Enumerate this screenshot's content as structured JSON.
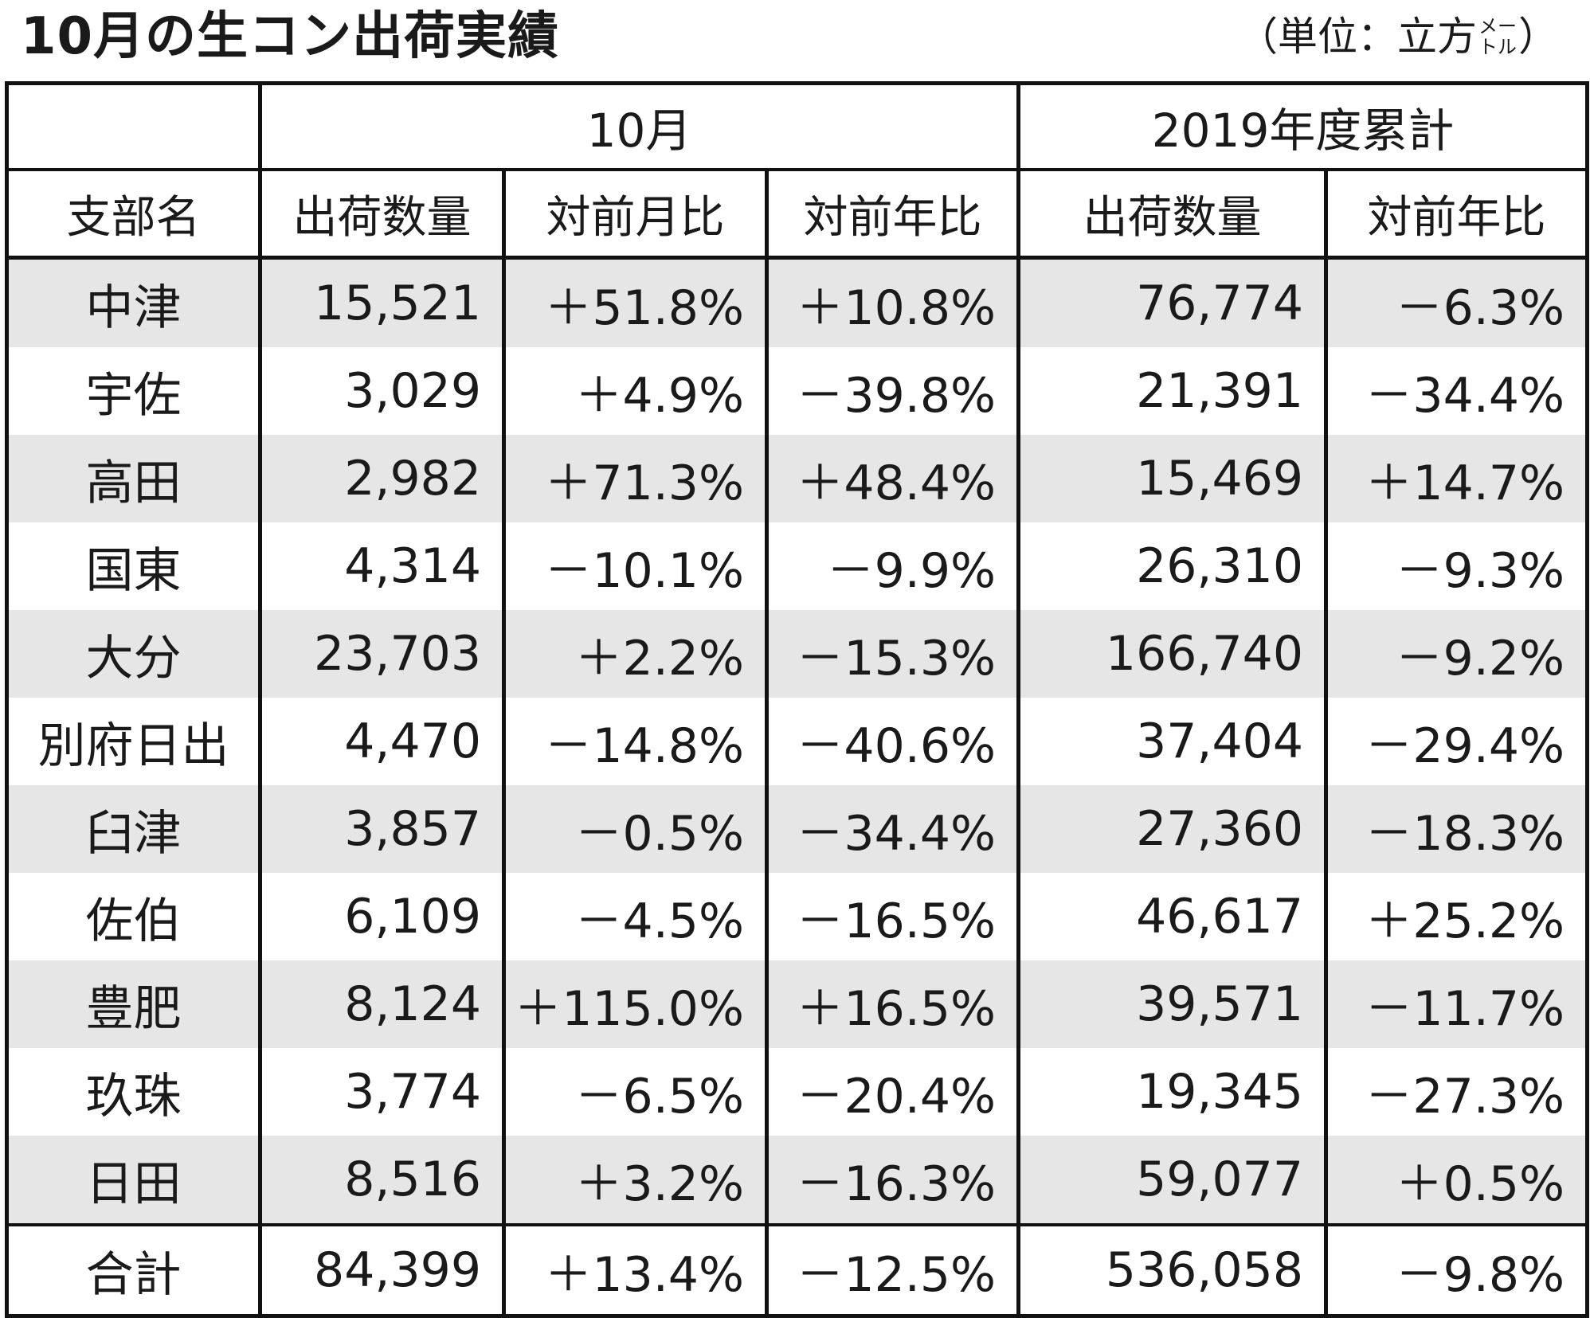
{
  "title": "10月の生コン出荷実績",
  "unit": {
    "prefix": "（単位：立方",
    "meter_top": "メー",
    "meter_bottom": "トル",
    "suffix": "）"
  },
  "table": {
    "group_headers": {
      "blank": "",
      "month": "10月",
      "cumulative": "2019年度累計"
    },
    "columns": [
      "支部名",
      "出荷数量",
      "対前月比",
      "対前年比",
      "出荷数量",
      "対前年比"
    ],
    "rows": [
      [
        "中津",
        "15,521",
        "＋51.8%",
        "＋10.8%",
        "76,774",
        "－6.3%"
      ],
      [
        "宇佐",
        "3,029",
        "＋4.9%",
        "－39.8%",
        "21,391",
        "－34.4%"
      ],
      [
        "高田",
        "2,982",
        "＋71.3%",
        "＋48.4%",
        "15,469",
        "＋14.7%"
      ],
      [
        "国東",
        "4,314",
        "－10.1%",
        "－9.9%",
        "26,310",
        "－9.3%"
      ],
      [
        "大分",
        "23,703",
        "＋2.2%",
        "－15.3%",
        "166,740",
        "－9.2%"
      ],
      [
        "別府日出",
        "4,470",
        "－14.8%",
        "－40.6%",
        "37,404",
        "－29.4%"
      ],
      [
        "臼津",
        "3,857",
        "－0.5%",
        "－34.4%",
        "27,360",
        "－18.3%"
      ],
      [
        "佐伯",
        "6,109",
        "－4.5%",
        "－16.5%",
        "46,617",
        "＋25.2%"
      ],
      [
        "豊肥",
        "8,124",
        "＋115.0%",
        "＋16.5%",
        "39,571",
        "－11.7%"
      ],
      [
        "玖珠",
        "3,774",
        "－6.5%",
        "－20.4%",
        "19,345",
        "－27.3%"
      ],
      [
        "日田",
        "8,516",
        "＋3.2%",
        "－16.3%",
        "59,077",
        "＋0.5%"
      ]
    ],
    "total": [
      "合計",
      "84,399",
      "＋13.4%",
      "－12.5%",
      "536,058",
      "－9.8%"
    ]
  },
  "colors": {
    "shade_row": "#e6e6e6",
    "border": "#111111",
    "text": "#1a1a1a"
  }
}
